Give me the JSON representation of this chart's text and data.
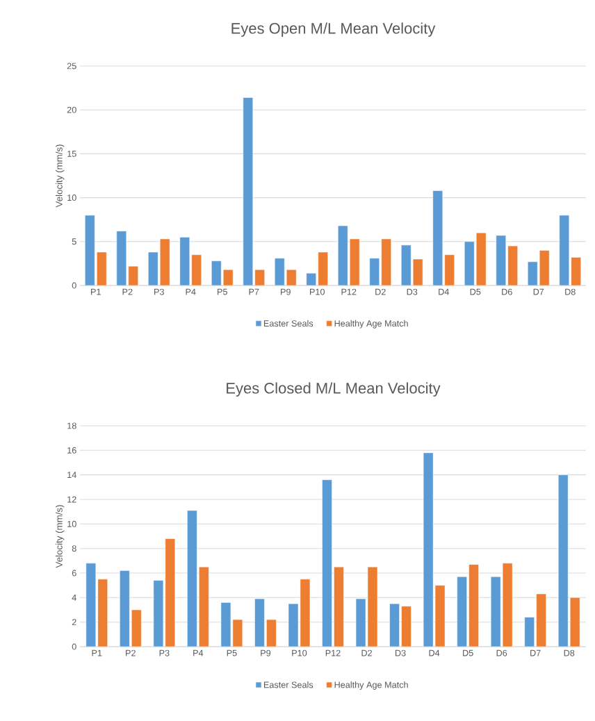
{
  "chart_data": [
    {
      "type": "bar",
      "title": "Eyes Open M/L Mean Velocity",
      "ylabel": "Velocity (mm/s)",
      "categories": [
        "P1",
        "P2",
        "P3",
        "P4",
        "P5",
        "P7",
        "P9",
        "P10",
        "P12",
        "D2",
        "D3",
        "D4",
        "D5",
        "D6",
        "D7",
        "D8"
      ],
      "series": [
        {
          "name": "Easter Seals",
          "color": "#5b9bd5",
          "values": [
            8.0,
            6.2,
            3.8,
            5.5,
            2.8,
            21.4,
            3.1,
            1.4,
            6.8,
            3.1,
            4.6,
            10.8,
            5.0,
            5.7,
            2.7,
            8.0
          ]
        },
        {
          "name": "Healthy Age Match",
          "color": "#ed7d31",
          "values": [
            3.8,
            2.2,
            5.3,
            3.5,
            1.8,
            1.8,
            1.8,
            3.8,
            5.3,
            5.3,
            3.0,
            3.5,
            6.0,
            4.5,
            4.0,
            3.2
          ]
        }
      ],
      "ylim": [
        0,
        25
      ],
      "yticks": [
        0,
        5,
        10,
        15,
        20,
        25
      ],
      "grid": "y",
      "legend": "bottom"
    },
    {
      "type": "bar",
      "title": "Eyes Closed M/L Mean Velocity",
      "ylabel": "Velocity (mm/s)",
      "categories": [
        "P1",
        "P2",
        "P3",
        "P4",
        "P5",
        "P9",
        "P10",
        "P12",
        "D2",
        "D3",
        "D4",
        "D5",
        "D6",
        "D7",
        "D8"
      ],
      "series": [
        {
          "name": "Easter Seals",
          "color": "#5b9bd5",
          "values": [
            6.8,
            6.2,
            5.4,
            11.1,
            3.6,
            3.9,
            3.5,
            13.6,
            3.9,
            3.5,
            15.8,
            5.7,
            5.7,
            2.4,
            14.0
          ]
        },
        {
          "name": "Healthy Age Match",
          "color": "#ed7d31",
          "values": [
            5.5,
            3.0,
            8.8,
            6.5,
            2.2,
            2.2,
            5.5,
            6.5,
            6.5,
            3.3,
            5.0,
            6.7,
            6.8,
            4.3,
            4.0
          ]
        }
      ],
      "ylim": [
        0,
        18
      ],
      "yticks": [
        0,
        2,
        4,
        6,
        8,
        10,
        12,
        14,
        16,
        18
      ],
      "grid": "y",
      "legend": "bottom"
    }
  ]
}
